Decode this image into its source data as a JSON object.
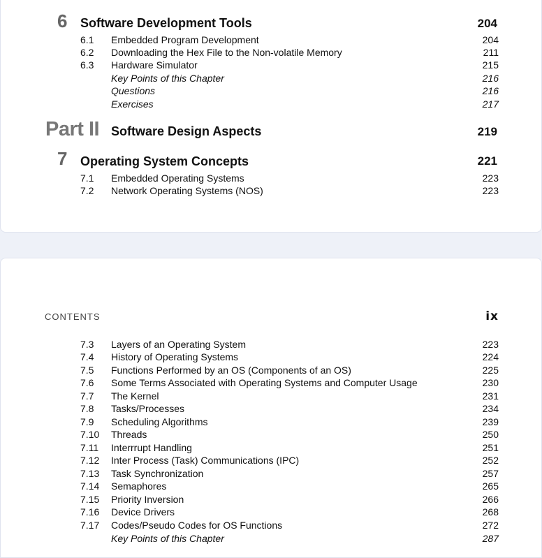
{
  "page1": {
    "chapter6": {
      "number": "6",
      "title": "Software Development Tools",
      "page": "204",
      "entries": [
        {
          "num": "6.1",
          "title": "Embedded Program Development",
          "page": "204"
        },
        {
          "num": "6.2",
          "title": "Downloading the Hex File to the Non-volatile Memory",
          "page": "211"
        },
        {
          "num": "6.3",
          "title": "Hardware Simulator",
          "page": "215"
        },
        {
          "num": "",
          "title": "Key Points of this Chapter",
          "page": "216"
        },
        {
          "num": "",
          "title": "Questions",
          "page": "216"
        },
        {
          "num": "",
          "title": "Exercises",
          "page": "217"
        }
      ]
    },
    "part2": {
      "label": "Part II",
      "title": "Software Design Aspects",
      "page": "219"
    },
    "chapter7": {
      "number": "7",
      "title": "Operating System Concepts",
      "page": "221",
      "entries": [
        {
          "num": "7.1",
          "title": "Embedded Operating Systems",
          "page": "223"
        },
        {
          "num": "7.2",
          "title": "Network Operating Systems (NOS)",
          "page": "223"
        }
      ]
    }
  },
  "page2": {
    "running_head": "CONTENTS",
    "folio": "ix",
    "entries": [
      {
        "num": "7.3",
        "title": "Layers of an Operating System",
        "page": "223"
      },
      {
        "num": "7.4",
        "title": "History of Operating Systems",
        "page": "224"
      },
      {
        "num": "7.5",
        "title": "Functions Performed by an OS (Components of an OS)",
        "page": "225"
      },
      {
        "num": "7.6",
        "title": "Some Terms Associated with Operating Systems and Computer Usage",
        "page": "230"
      },
      {
        "num": "7.7",
        "title": "The Kernel",
        "page": "231"
      },
      {
        "num": "7.8",
        "title": "Tasks/Processes",
        "page": "234"
      },
      {
        "num": "7.9",
        "title": "Scheduling Algorithms",
        "page": "239"
      },
      {
        "num": "7.10",
        "title": "Threads",
        "page": "250"
      },
      {
        "num": "7.11",
        "title": "Interrrupt Handling",
        "page": "251"
      },
      {
        "num": "7.12",
        "title": "Inter Process (Task) Communications (IPC)",
        "page": "252"
      },
      {
        "num": "7.13",
        "title": "Task Synchronization",
        "page": "257"
      },
      {
        "num": "7.14",
        "title": "Semaphores",
        "page": "265"
      },
      {
        "num": "7.15",
        "title": "Priority Inversion",
        "page": "266"
      },
      {
        "num": "7.16",
        "title": "Device Drivers",
        "page": "268"
      },
      {
        "num": "7.17",
        "title": "Codes/Pseudo Codes for OS Functions",
        "page": "272"
      },
      {
        "num": "",
        "title": "Key Points of this Chapter",
        "page": "287"
      }
    ]
  }
}
